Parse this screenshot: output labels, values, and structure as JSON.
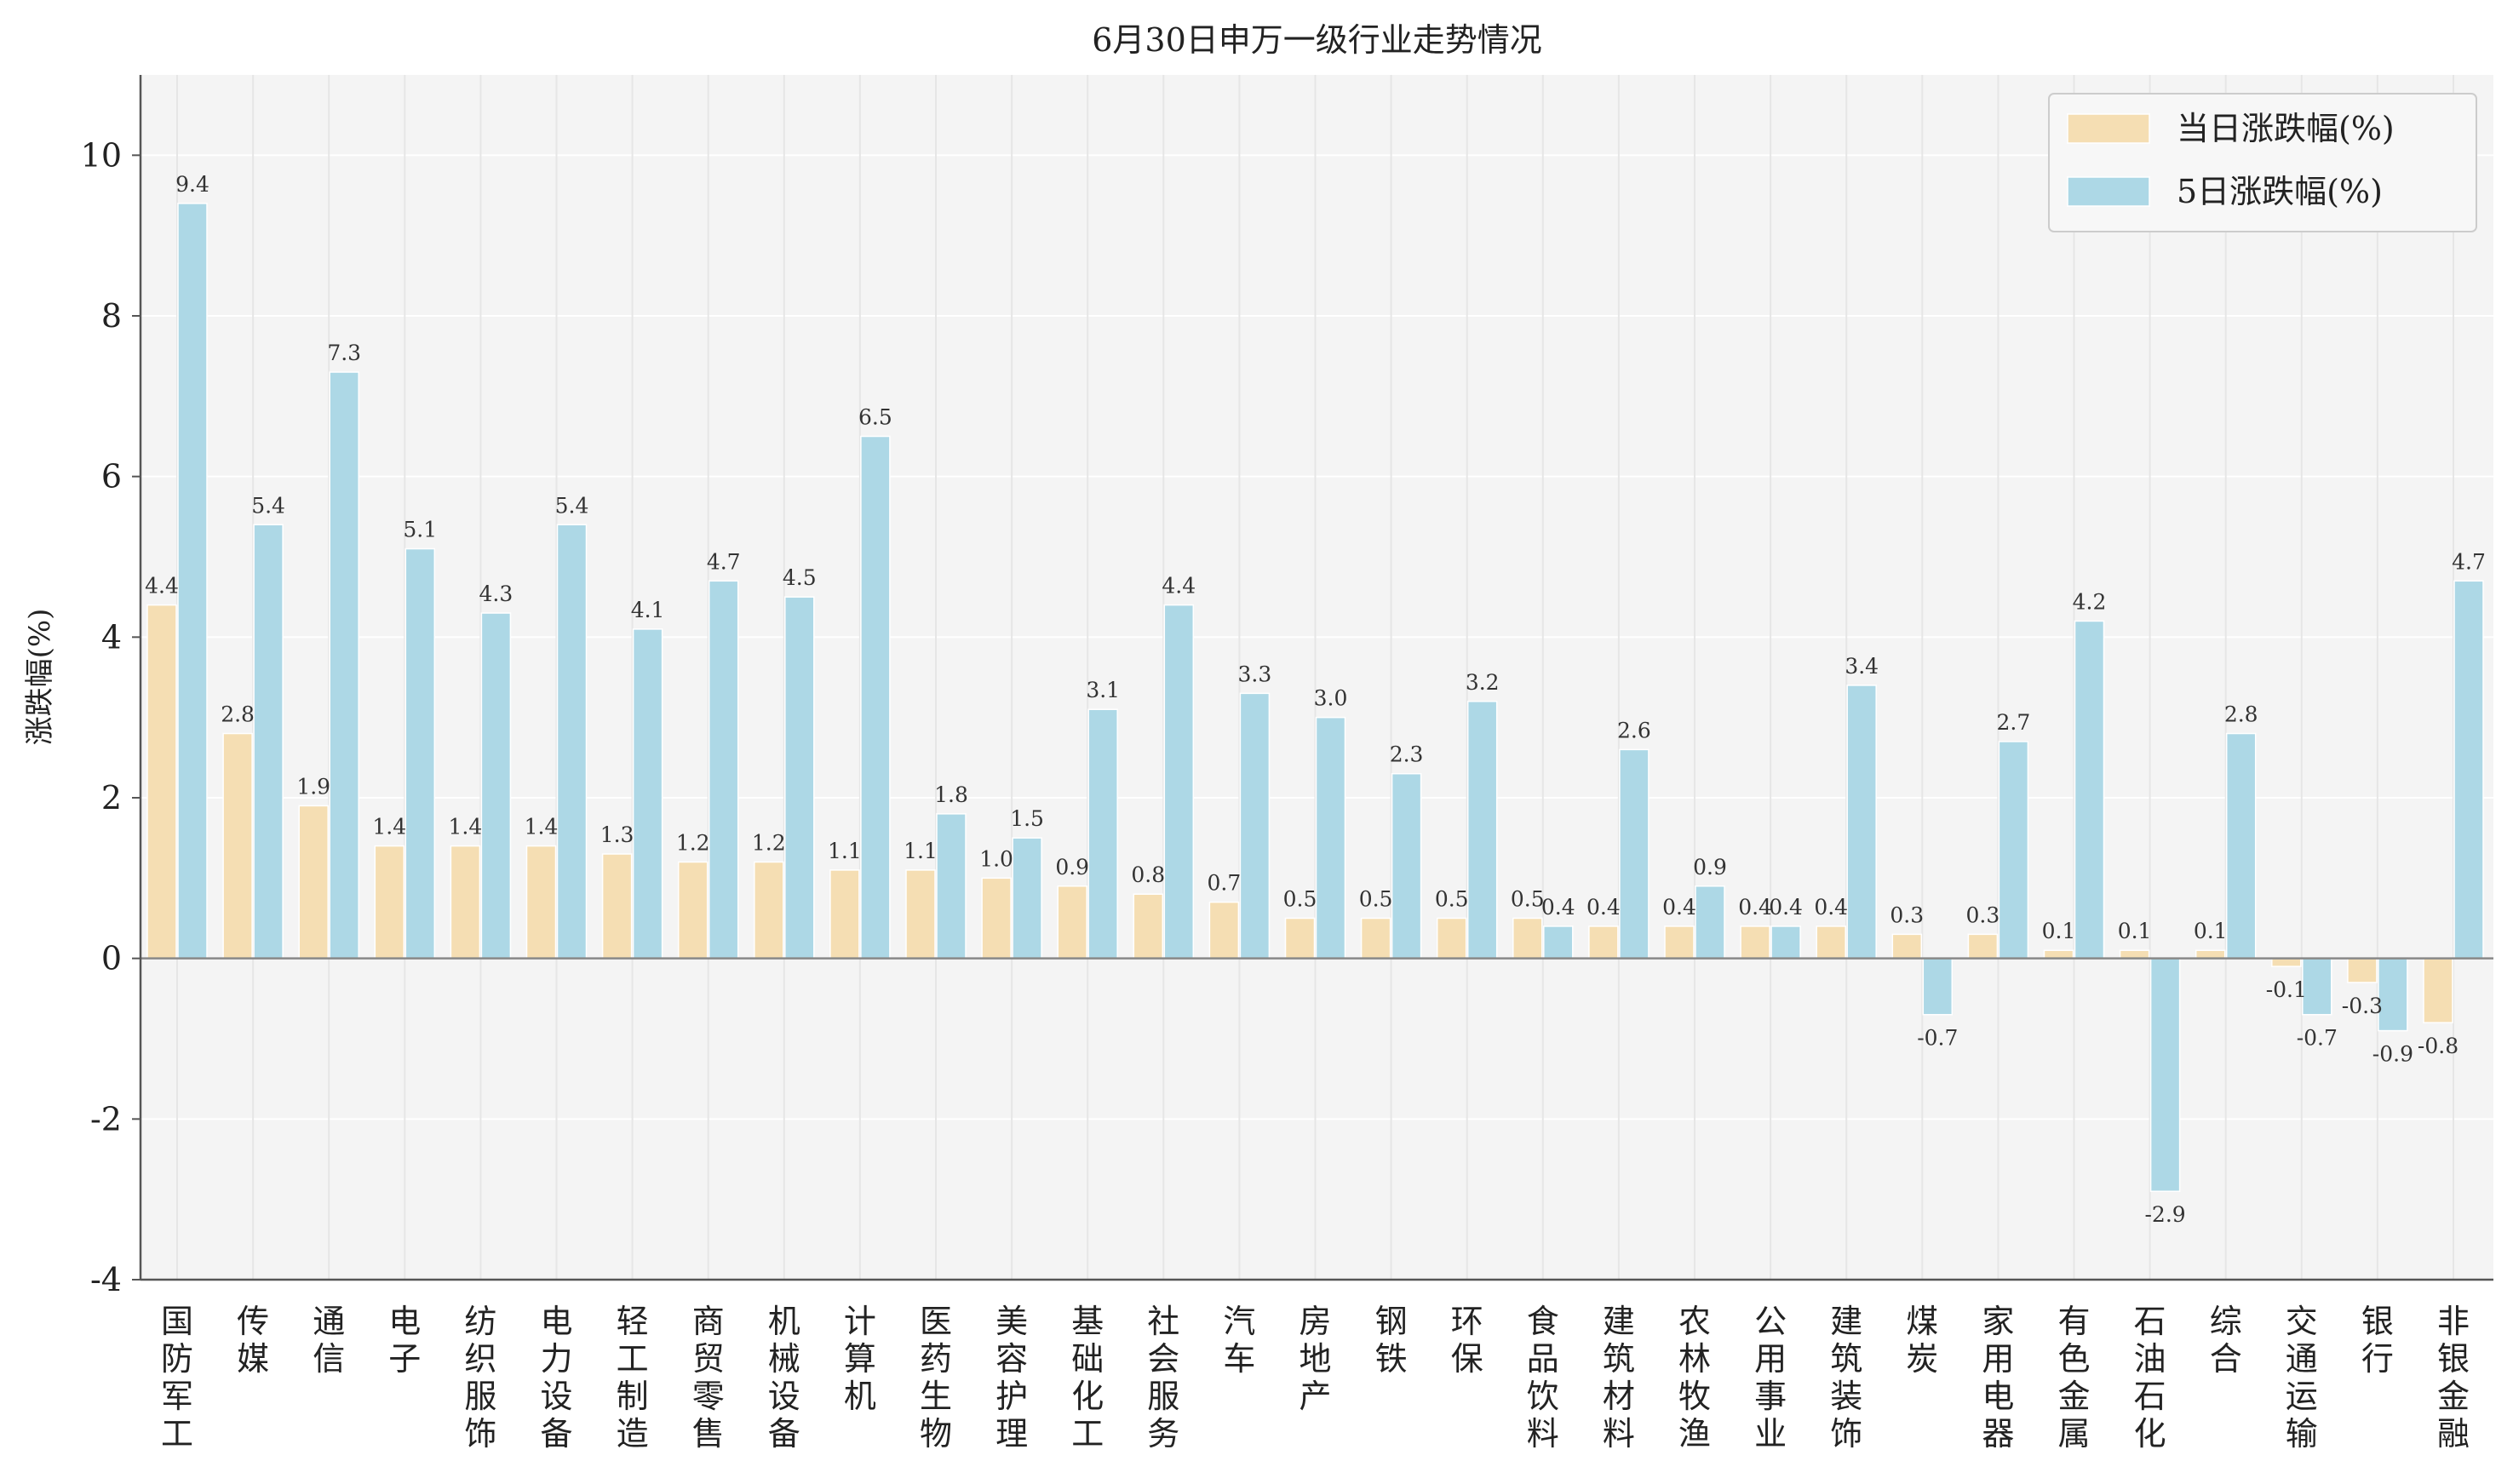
{
  "chart_data": {
    "type": "bar",
    "title": "6月30日申万一级行业走势情况",
    "xlabel": "",
    "ylabel": "涨跌幅(%)",
    "ylim": [
      -4,
      11
    ],
    "yticks": [
      -4,
      -2,
      0,
      2,
      4,
      6,
      8,
      10
    ],
    "grid": true,
    "legend_position": "top-right",
    "categories": [
      "国防军工",
      "传媒",
      "通信",
      "电子",
      "纺织服饰",
      "电力设备",
      "轻工制造",
      "商贸零售",
      "机械设备",
      "计算机",
      "医药生物",
      "美容护理",
      "基础化工",
      "社会服务",
      "汽车",
      "房地产",
      "钢铁",
      "环保",
      "食品饮料",
      "建筑材料",
      "农林牧渔",
      "公用事业",
      "建筑装饰",
      "煤炭",
      "家用电器",
      "有色金属",
      "石油石化",
      "综合",
      "交通运输",
      "银行",
      "非银金融"
    ],
    "series": [
      {
        "name": "当日涨跌幅(%)",
        "color": "#f5deb3",
        "values": [
          4.4,
          2.8,
          1.9,
          1.4,
          1.4,
          1.4,
          1.3,
          1.2,
          1.2,
          1.1,
          1.1,
          1.0,
          0.9,
          0.8,
          0.7,
          0.5,
          0.5,
          0.5,
          0.5,
          0.4,
          0.4,
          0.4,
          0.4,
          0.3,
          0.3,
          0.1,
          0.1,
          0.1,
          -0.1,
          -0.3,
          -0.8
        ]
      },
      {
        "name": "5日涨跌幅(%)",
        "color": "#add8e6",
        "values": [
          9.4,
          5.4,
          7.3,
          5.1,
          4.3,
          5.4,
          4.1,
          4.7,
          4.5,
          6.5,
          1.8,
          1.5,
          3.1,
          4.4,
          3.3,
          3.0,
          2.3,
          3.2,
          0.4,
          2.6,
          0.9,
          0.4,
          3.4,
          -0.7,
          2.7,
          4.2,
          -2.9,
          2.8,
          -0.7,
          -0.9,
          4.7
        ]
      }
    ]
  }
}
